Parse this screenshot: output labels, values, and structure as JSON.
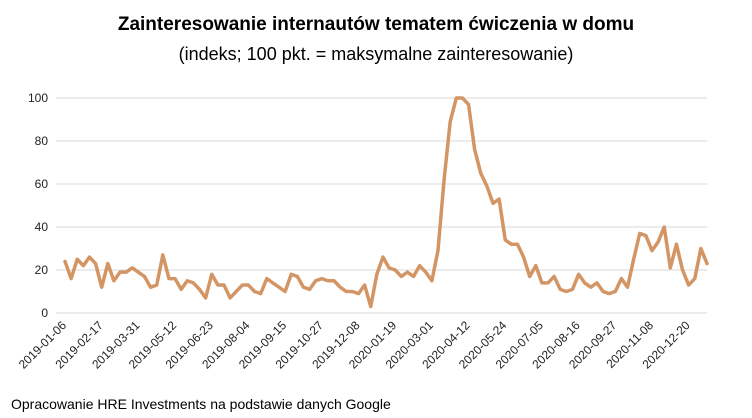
{
  "chart_data": {
    "type": "line",
    "title": "Zainteresowanie internautów tematem ćwiczenia w domu",
    "subtitle": "(indeks; 100 pkt. = maksymalne zainteresowanie)",
    "xlabel": "",
    "ylabel": "",
    "ylim": [
      0,
      100
    ],
    "yticks": [
      0,
      20,
      40,
      60,
      80,
      100
    ],
    "grid": true,
    "line_color": "#D49565",
    "grid_color": "#D9D9D9",
    "x_tick_labels": [
      "2019-01-06",
      "2019-02-17",
      "2019-03-31",
      "2019-05-12",
      "2019-06-23",
      "2019-08-04",
      "2019-09-15",
      "2019-10-27",
      "2019-12-08",
      "2020-01-19",
      "2020-03-01",
      "2020-04-12",
      "2020-05-24",
      "2020-07-05",
      "2020-08-16",
      "2020-09-27",
      "2020-11-08",
      "2020-12-20"
    ],
    "series": [
      {
        "name": "Zainteresowanie",
        "values": [
          24,
          16,
          25,
          22,
          26,
          23,
          12,
          23,
          15,
          19,
          19,
          21,
          19,
          17,
          12,
          13,
          27,
          16,
          16,
          11,
          15,
          14,
          11,
          7,
          18,
          13,
          13,
          7,
          10,
          13,
          13,
          10,
          9,
          16,
          14,
          12,
          10,
          18,
          17,
          12,
          11,
          15,
          16,
          15,
          15,
          12,
          10,
          10,
          9,
          13,
          3,
          18,
          26,
          21,
          20,
          17,
          19,
          17,
          22,
          19,
          15,
          29,
          62,
          89,
          100,
          100,
          97,
          76,
          65,
          59,
          51,
          53,
          34,
          32,
          32,
          26,
          17,
          22,
          14,
          14,
          17,
          11,
          10,
          11,
          18,
          14,
          12,
          14,
          10,
          9,
          10,
          16,
          12,
          25,
          37,
          36,
          29,
          33,
          40,
          21,
          32,
          20,
          13,
          16,
          30,
          23
        ]
      }
    ]
  },
  "source": "Opracowanie HRE Investments na podstawie danych Google"
}
